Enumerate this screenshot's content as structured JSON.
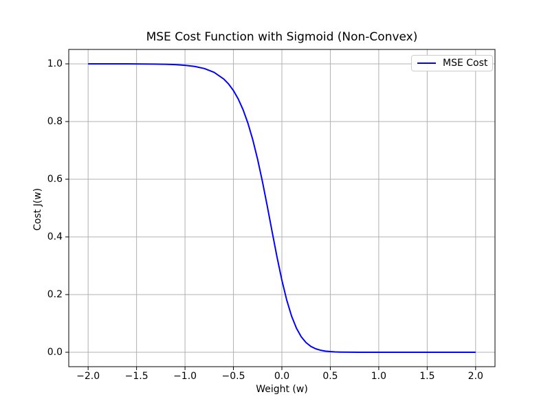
{
  "figure": {
    "background": "#ffffff",
    "text_color": "#000000"
  },
  "chart_data": {
    "type": "line",
    "title": "MSE Cost Function with Sigmoid (Non-Convex)",
    "xlabel": "Weight (w)",
    "ylabel": "Cost J(w)",
    "xlim": [
      -2.2,
      2.2
    ],
    "ylim": [
      -0.05,
      1.05
    ],
    "grid": true,
    "grid_color": "#b0b0b0",
    "axes_color": "#000000",
    "legend": {
      "position": "upper right",
      "border_color": "#cccccc",
      "entries": [
        {
          "label": "MSE Cost",
          "color": "#0000ff"
        }
      ]
    },
    "xticks": {
      "values": [
        -2.0,
        -1.5,
        -1.0,
        -0.5,
        0.0,
        0.5,
        1.0,
        1.5,
        2.0
      ],
      "labels": [
        "−2.0",
        "−1.5",
        "−1.0",
        "−0.5",
        "0.0",
        "0.5",
        "1.0",
        "1.5",
        "2.0"
      ]
    },
    "yticks": {
      "values": [
        0.0,
        0.2,
        0.4,
        0.6,
        0.8,
        1.0
      ],
      "labels": [
        "0.0",
        "0.2",
        "0.4",
        "0.6",
        "0.8",
        "1.0"
      ]
    },
    "series": [
      {
        "name": "MSE Cost",
        "color": "#0000ff",
        "line_width": 2,
        "x": [
          -2.0,
          -1.9,
          -1.8,
          -1.7,
          -1.6,
          -1.5,
          -1.4,
          -1.3,
          -1.2,
          -1.1,
          -1.0,
          -0.9,
          -0.8,
          -0.7,
          -0.6,
          -0.55,
          -0.5,
          -0.45,
          -0.4,
          -0.35,
          -0.3,
          -0.25,
          -0.2,
          -0.15,
          -0.1,
          -0.05,
          0.0,
          0.05,
          0.1,
          0.15,
          0.2,
          0.25,
          0.3,
          0.35,
          0.4,
          0.45,
          0.5,
          0.55,
          0.6,
          0.7,
          0.8,
          0.9,
          1.0,
          1.1,
          1.2,
          1.3,
          1.4,
          1.5,
          1.6,
          1.7,
          1.8,
          1.9,
          2.0
        ],
        "y": [
          1.0,
          0.99998,
          0.99996,
          0.99993,
          0.99986,
          0.99975,
          0.99955,
          0.99918,
          0.99851,
          0.99728,
          0.99506,
          0.99103,
          0.98374,
          0.97067,
          0.94751,
          0.93012,
          0.9074,
          0.87802,
          0.84057,
          0.79371,
          0.73642,
          0.66843,
          0.59063,
          0.50545,
          0.41687,
          0.32999,
          0.25,
          0.1811,
          0.12556,
          0.08355,
          0.05358,
          0.03328,
          0.02012,
          0.0119,
          0.00692,
          0.00397,
          0.00225,
          0.00126,
          0.00071,
          0.00022,
          7e-05,
          2e-05,
          1e-05,
          0.0,
          0.0,
          0.0,
          0.0,
          0.0,
          0.0,
          0.0,
          0.0,
          0.0,
          0.0
        ]
      }
    ]
  }
}
